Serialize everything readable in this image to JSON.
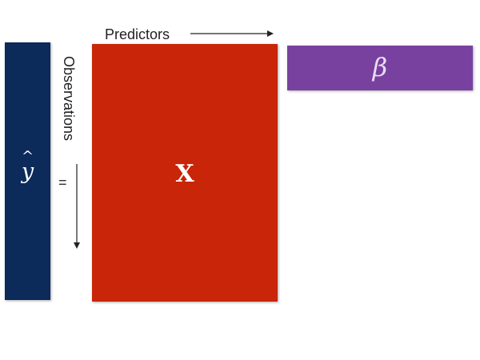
{
  "colors": {
    "y_hat_block": "#0c2a5a",
    "x_block": "#c92508",
    "beta_block": "#7841a0",
    "arrow": "#222222"
  },
  "labels": {
    "predictors": "Predictors",
    "observations": "Observations",
    "equals": "="
  },
  "blocks": {
    "y_hat": {
      "base": "y",
      "accent": "^"
    },
    "x": {
      "symbol": "X"
    },
    "beta": {
      "symbol": "β"
    }
  }
}
